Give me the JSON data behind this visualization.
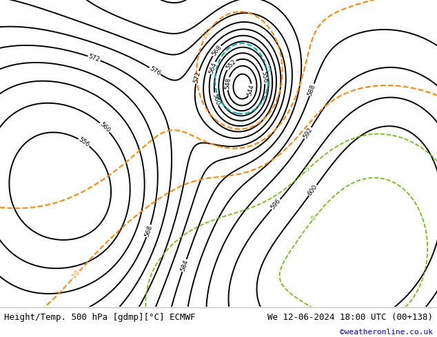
{
  "title_left": "Height/Temp. 500 hPa [gdmp][°C] ECMWF",
  "title_right": "We 12-06-2024 18:00 UTC (00+138)",
  "credit": "©weatheronline.co.uk",
  "fig_bg": "#ffffff",
  "bottom_bar_color": "#f0f0f0",
  "title_fontsize": 9,
  "credit_fontsize": 8,
  "credit_color": "#0000cc",
  "map_extent": [
    -25,
    45,
    30,
    75
  ]
}
